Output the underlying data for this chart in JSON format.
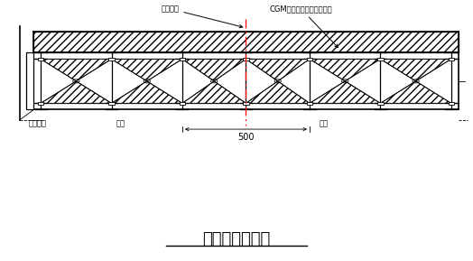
{
  "title": "预制钢梁示意图",
  "bg_color": "#ffffff",
  "line_color": "#000000",
  "centerline_color": "#ff0000",
  "label_beam_center": "梁跨中线",
  "label_cgm": "CGM高强无收缩灌浆料灌实",
  "label_bolt": "对拉螺栓",
  "label_angle1": "角钢",
  "label_angle2": "角钢",
  "label_500": "500",
  "fig_width": 5.24,
  "fig_height": 2.89,
  "dpi": 100
}
